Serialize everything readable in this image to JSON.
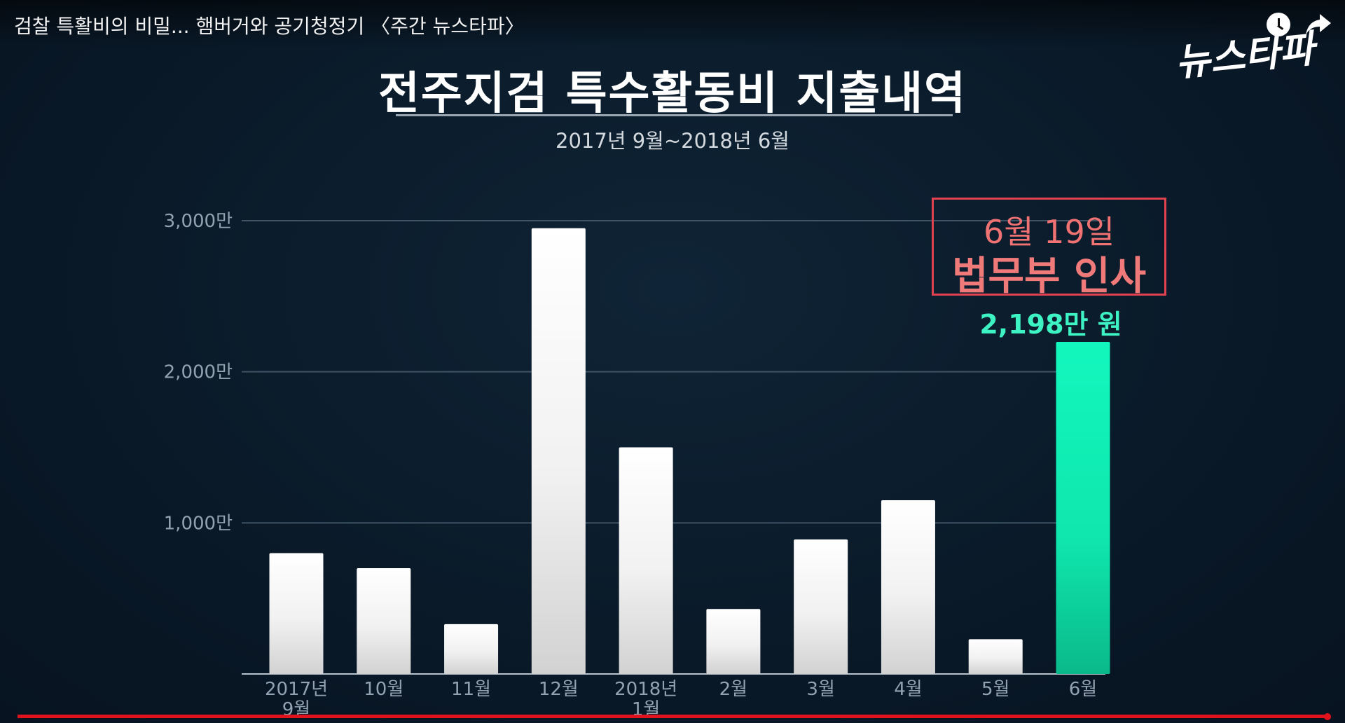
{
  "video": {
    "title": "검찰 특활비의 비밀... 햄버거와 공기청정기 〈주간 뉴스타파〉",
    "channel_logo": "뉴스타파"
  },
  "icons": {
    "watch_later": "clock-icon",
    "share": "share-arrow-icon"
  },
  "annotation": {
    "date": "6월 19일",
    "event": "법무부 인사",
    "value_label": "2,198만 원",
    "color": "#e0434f"
  },
  "colors": {
    "bar": "#ffffff",
    "highlight_bar": "#12f0b8",
    "grid": "#3e5366",
    "background": "#0b1b2a",
    "progress": "#e0121b"
  },
  "chart_data": {
    "type": "bar",
    "title": "전주지검 특수활동비 지출내역",
    "subtitle": "2017년 9월~2018년 6월",
    "categories": [
      "2017년 9월",
      "10월",
      "11월",
      "12월",
      "2018년 1월",
      "2월",
      "3월",
      "4월",
      "5월",
      "6월"
    ],
    "category_lines": [
      [
        "2017년",
        "9월"
      ],
      [
        "10월"
      ],
      [
        "11월"
      ],
      [
        "12월"
      ],
      [
        "2018년",
        "1월"
      ],
      [
        "2월"
      ],
      [
        "3월"
      ],
      [
        "4월"
      ],
      [
        "5월"
      ],
      [
        "6월"
      ]
    ],
    "values": [
      800,
      700,
      330,
      2950,
      1500,
      430,
      890,
      1150,
      230,
      2198
    ],
    "highlight_index": 9,
    "y_ticks": [
      1000,
      2000,
      3000
    ],
    "y_tick_labels": [
      "1,000만",
      "2,000만",
      "3,000만"
    ],
    "ylim": [
      0,
      3000
    ],
    "grid": true
  }
}
